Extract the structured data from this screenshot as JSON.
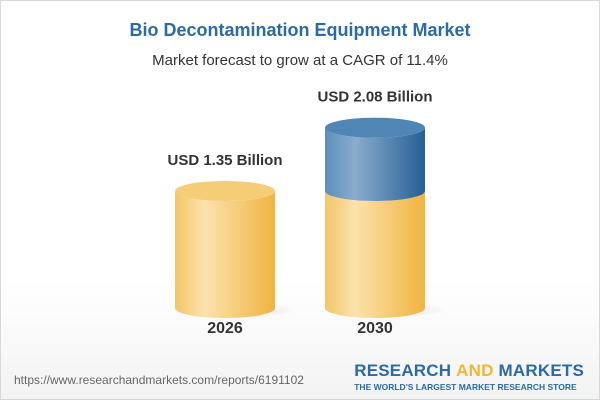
{
  "title": "Bio Decontamination Equipment Market",
  "subtitle": "Market forecast to grow at a CAGR of 11.4%",
  "footer": {
    "url": "https://www.researchandmarkets.com/reports/6191102",
    "logo_part1": "RESEARCH ",
    "logo_part2": "AND",
    "logo_part3": " MARKETS",
    "tagline": "THE WORLD'S LARGEST MARKET RESEARCH STORE"
  },
  "chart_data": {
    "type": "bar",
    "style": "3d-cylinder",
    "title": "Bio Decontamination Equipment Market",
    "subtitle": "Market forecast to grow at a CAGR of 11.4%",
    "categories": [
      "2026",
      "2030"
    ],
    "values": [
      1.35,
      2.08
    ],
    "unit": "USD Billion",
    "data_labels": [
      "USD 1.35 Billion",
      "USD 2.08 Billion"
    ],
    "colors": {
      "base": "#f2c35e",
      "growth": "#3f7db0"
    }
  }
}
